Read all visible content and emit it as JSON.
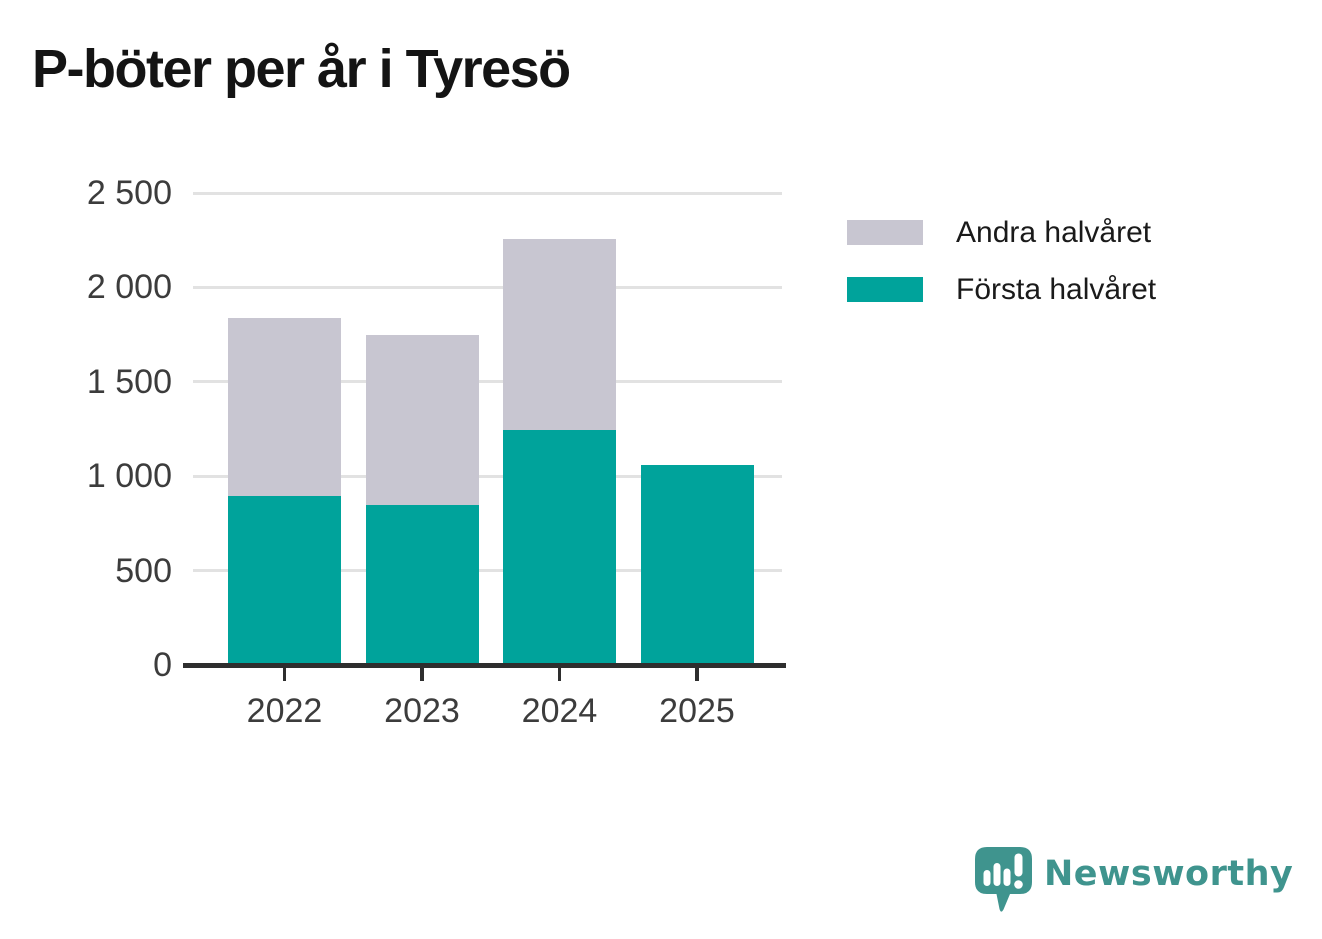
{
  "title": "P-böter per år i Tyresö",
  "colors": {
    "first_half": "#00a39b",
    "second_half": "#c8c6d1",
    "axis": "#2e2e2e",
    "grid": "#e2e2e2",
    "tick_text": "#3c3c3c",
    "legend_text": "#1a1a1a",
    "title_text": "#141414",
    "logo": "#3f948e"
  },
  "chart_data": {
    "type": "bar",
    "stacked": true,
    "title": "P-böter per år i Tyresö",
    "categories": [
      "2022",
      "2023",
      "2024",
      "2025"
    ],
    "series": [
      {
        "name": "Första halvåret",
        "key": "forsta-halvaret",
        "color_key": "first_half",
        "values": [
          895,
          850,
          1245,
          1060
        ]
      },
      {
        "name": "Andra halvåret",
        "key": "andra-halvaret",
        "color_key": "second_half",
        "values": [
          945,
          900,
          1010,
          null
        ]
      }
    ],
    "xlabel": "",
    "ylabel": "",
    "ylim": [
      0,
      2500
    ],
    "yticks": [
      {
        "value": 0,
        "label": "0"
      },
      {
        "value": 500,
        "label": "500"
      },
      {
        "value": 1000,
        "label": "1 000"
      },
      {
        "value": 1500,
        "label": "1 500"
      },
      {
        "value": 2000,
        "label": "2 000"
      },
      {
        "value": 2500,
        "label": "2 500"
      }
    ],
    "grid": true,
    "legend_position": "top-right"
  },
  "legend": {
    "items": [
      {
        "label": "Andra halvåret",
        "color_key": "second_half"
      },
      {
        "label": "Första halvåret",
        "color_key": "first_half"
      }
    ]
  },
  "logo": {
    "text": "Newsworthy"
  }
}
